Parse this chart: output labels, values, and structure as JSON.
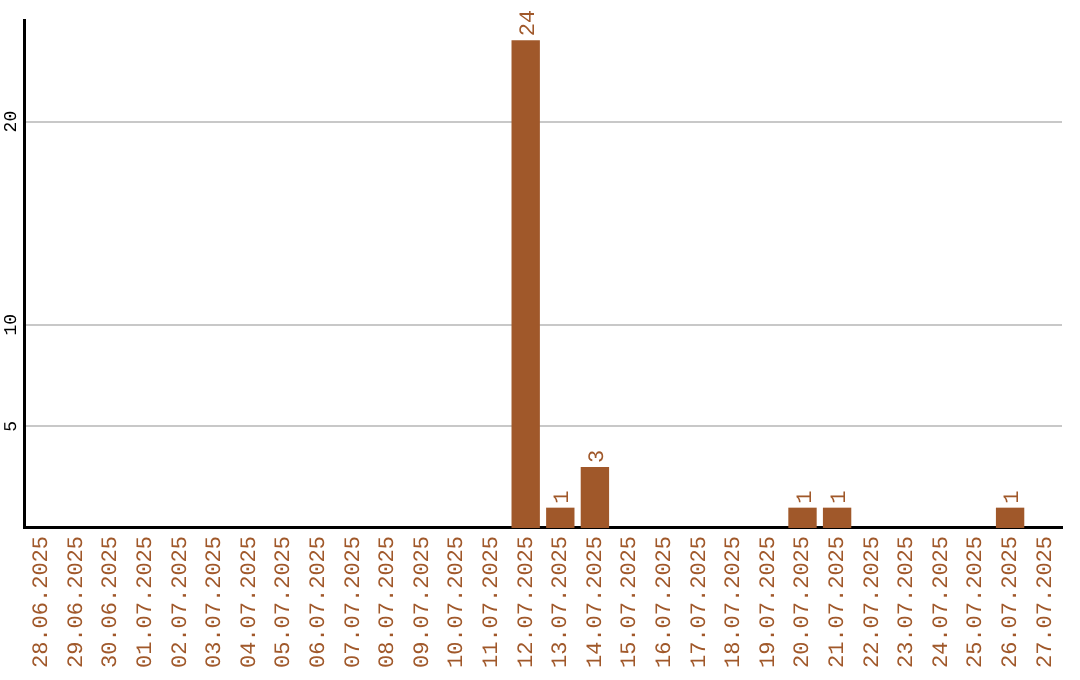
{
  "chart_data": {
    "type": "bar",
    "categories": [
      "28.06.2025",
      "29.06.2025",
      "30.06.2025",
      "01.07.2025",
      "02.07.2025",
      "03.07.2025",
      "04.07.2025",
      "05.07.2025",
      "06.07.2025",
      "07.07.2025",
      "08.07.2025",
      "09.07.2025",
      "10.07.2025",
      "11.07.2025",
      "12.07.2025",
      "13.07.2025",
      "14.07.2025",
      "15.07.2025",
      "16.07.2025",
      "17.07.2025",
      "18.07.2025",
      "19.07.2025",
      "20.07.2025",
      "21.07.2025",
      "22.07.2025",
      "23.07.2025",
      "24.07.2025",
      "25.07.2025",
      "26.07.2025",
      "27.07.2025"
    ],
    "values": [
      0,
      0,
      0,
      0,
      0,
      0,
      0,
      0,
      0,
      0,
      0,
      0,
      0,
      0,
      24,
      1,
      3,
      0,
      0,
      0,
      0,
      0,
      1,
      1,
      0,
      0,
      0,
      0,
      1,
      0
    ],
    "value_labels": [
      null,
      null,
      null,
      null,
      null,
      null,
      null,
      null,
      null,
      null,
      null,
      null,
      null,
      null,
      "24",
      "1",
      "3",
      null,
      null,
      null,
      null,
      null,
      "1",
      "1",
      null,
      null,
      null,
      null,
      "1",
      null
    ],
    "color": "#a0582a",
    "ylim": [
      0,
      25
    ],
    "yticks": [
      5,
      10,
      20
    ],
    "grid": "y",
    "legend": false
  }
}
